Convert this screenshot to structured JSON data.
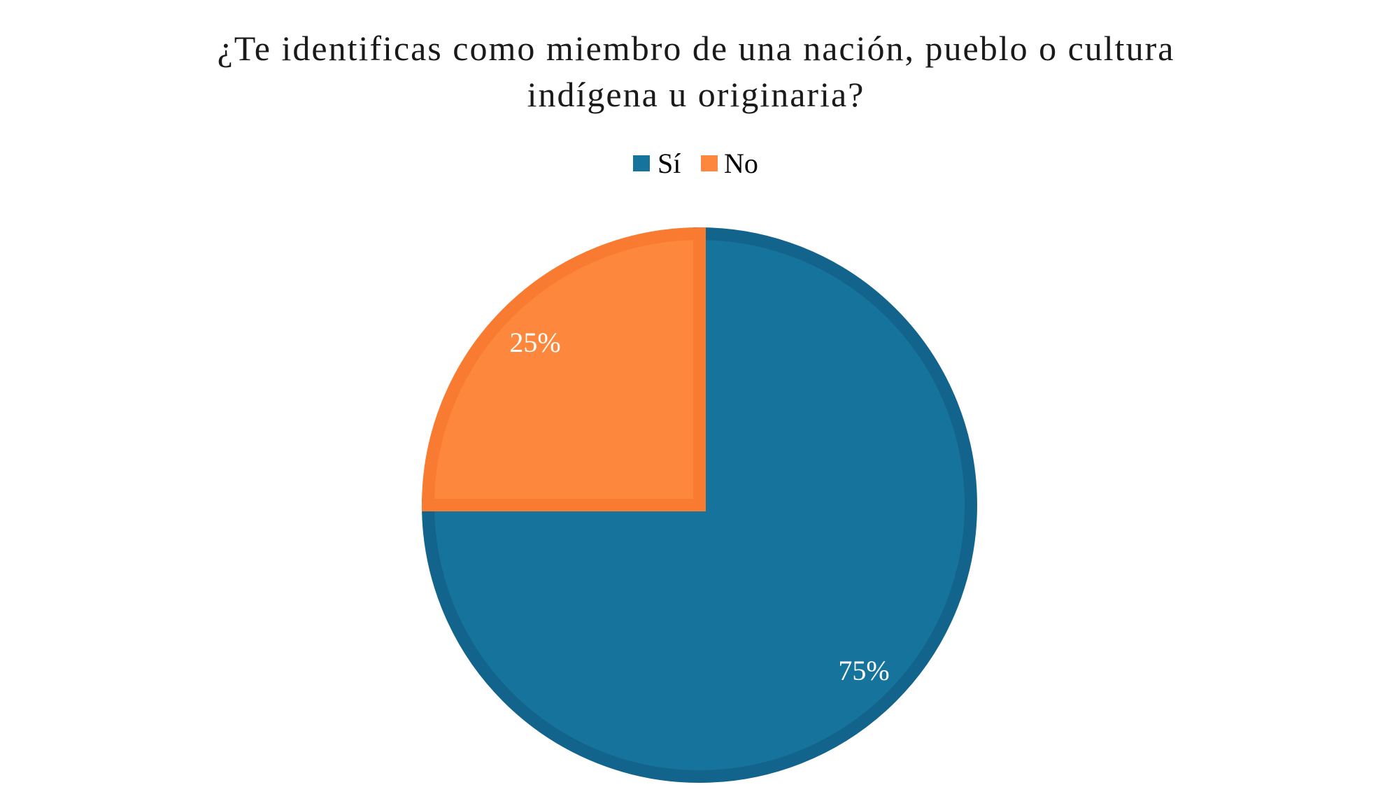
{
  "chart_data": {
    "type": "pie",
    "title": [
      "¿Te identificas como miembro de una nación, pueblo o cultura",
      "indígena u originaria?"
    ],
    "categories": [
      "Sí",
      "No"
    ],
    "values": [
      75,
      25
    ],
    "data_labels": [
      "75%",
      "25%"
    ],
    "colors": [
      "#15739C",
      "#FD873D"
    ],
    "border_colors": [
      "#12648C",
      "#F97B31"
    ],
    "legend_position": "top"
  }
}
